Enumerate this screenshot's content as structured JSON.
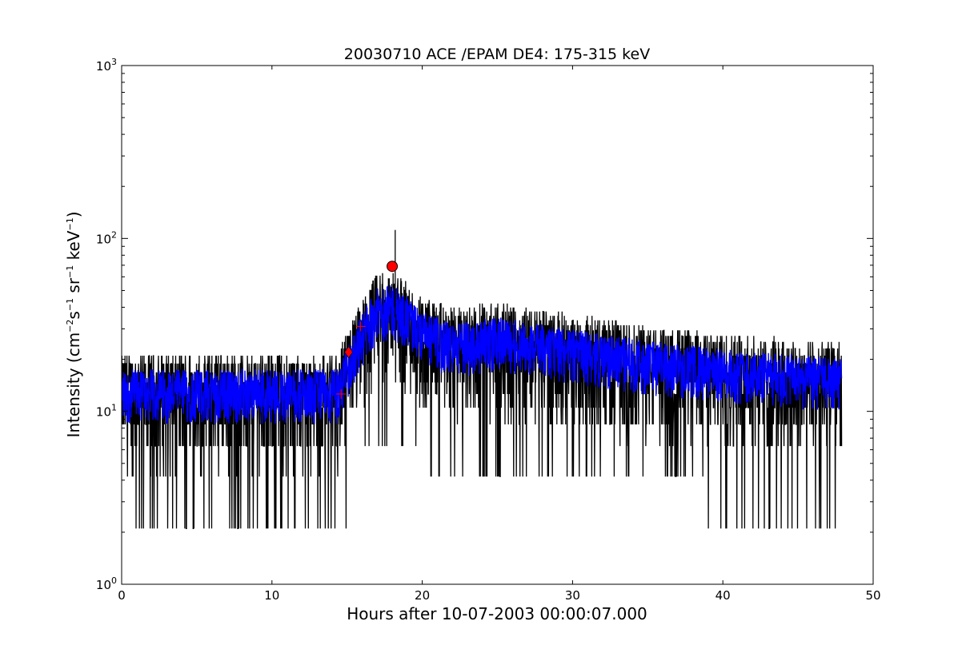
{
  "chart_data": {
    "type": "line",
    "title": "20030710 ACE /EPAM DE4: 175-315 keV",
    "xlabel": "Hours after 10-07-2003 00:00:07.000",
    "ylabel": {
      "prefix": "Intensity (cm",
      "sup1": "−2",
      "mid1": "s",
      "sup2": "−1",
      "mid2": " sr",
      "sup3": "−1",
      "mid3": " keV",
      "sup4": "−1",
      "suffix": ")"
    },
    "xlim": [
      0,
      50
    ],
    "ylim": [
      1,
      1000
    ],
    "yscale": "log",
    "xticks": [
      "0",
      "10",
      "20",
      "30",
      "40",
      "50"
    ],
    "xtick_values": [
      0,
      10,
      20,
      30,
      40,
      50
    ],
    "yticks": [
      {
        "base": "10",
        "exp": "0",
        "value": 1
      },
      {
        "base": "10",
        "exp": "1",
        "value": 10
      },
      {
        "base": "10",
        "exp": "2",
        "value": 100
      },
      {
        "base": "10",
        "exp": "3",
        "value": 1000
      }
    ],
    "grid": false,
    "legend": "none",
    "series_info": {
      "raw_color": "#000000",
      "smoothed_color": "#0000ff",
      "time_end_hours": 47.9,
      "raw_levels": [
        2.1,
        4.2,
        6.3,
        8.4,
        10.5,
        12.6,
        14.7,
        16.8,
        18.9,
        21.0,
        23.1,
        25.2
      ],
      "profile": [
        {
          "x": 0.0,
          "y": 13
        },
        {
          "x": 14.5,
          "y": 13
        },
        {
          "x": 15.5,
          "y": 22
        },
        {
          "x": 17.0,
          "y": 38
        },
        {
          "x": 18.0,
          "y": 40
        },
        {
          "x": 20.0,
          "y": 28
        },
        {
          "x": 22.0,
          "y": 24
        },
        {
          "x": 25.0,
          "y": 26
        },
        {
          "x": 30.0,
          "y": 22
        },
        {
          "x": 35.0,
          "y": 19
        },
        {
          "x": 40.0,
          "y": 17
        },
        {
          "x": 47.9,
          "y": 15
        }
      ]
    },
    "markers": [
      {
        "name": "onset-plus",
        "shape": "plus",
        "x": 14.6,
        "y": 12.6,
        "color": "#ff0000"
      },
      {
        "name": "onset-diamond",
        "shape": "diamond",
        "x": 15.1,
        "y": 22.0,
        "color": "#ff0000"
      },
      {
        "name": "mid-plus",
        "shape": "plus",
        "x": 15.9,
        "y": 31.0,
        "color": "#ff0000"
      },
      {
        "name": "peak-circle",
        "shape": "circle",
        "x": 18.0,
        "y": 69.0,
        "color": "#ff0000"
      }
    ]
  }
}
